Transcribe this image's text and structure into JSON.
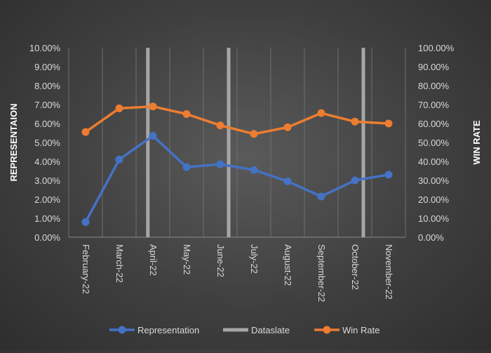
{
  "chart_data": {
    "type": "line",
    "categories": [
      "February-22",
      "March-22",
      "April-22",
      "May-22",
      "June-22",
      "July-22",
      "August-22",
      "September-22",
      "October-22",
      "November-22"
    ],
    "y_left": {
      "label": "REPRESENTAION",
      "ylim": [
        0,
        10
      ],
      "ticks": [
        "0.00%",
        "1.00%",
        "2.00%",
        "3.00%",
        "4.00%",
        "5.00%",
        "6.00%",
        "7.00%",
        "8.00%",
        "9.00%",
        "10.00%"
      ]
    },
    "y_right": {
      "label": "WIN RATE",
      "ylim": [
        0,
        100
      ],
      "ticks": [
        "0.00%",
        "10.00%",
        "20.00%",
        "30.00%",
        "40.00%",
        "50.00%",
        "60.00%",
        "70.00%",
        "80.00%",
        "90.00%",
        "100.00%"
      ]
    },
    "series": [
      {
        "name": "Representation",
        "axis": "left",
        "color": "#4472c4",
        "values": [
          0.8,
          4.1,
          5.35,
          3.7,
          3.85,
          3.55,
          2.95,
          2.15,
          3.0,
          3.3
        ]
      },
      {
        "name": "Win Rate",
        "axis": "right",
        "color": "#ed7d31",
        "values": [
          55.5,
          68.0,
          69.0,
          65.0,
          59.0,
          54.5,
          58.0,
          65.5,
          61.0,
          60.0
        ]
      }
    ],
    "dataslate": {
      "name": "Dataslate",
      "color": "#a6a6a6",
      "positions": [
        2.35,
        4.75,
        8.75
      ]
    },
    "grid": "vertical",
    "legend": "bottom"
  }
}
